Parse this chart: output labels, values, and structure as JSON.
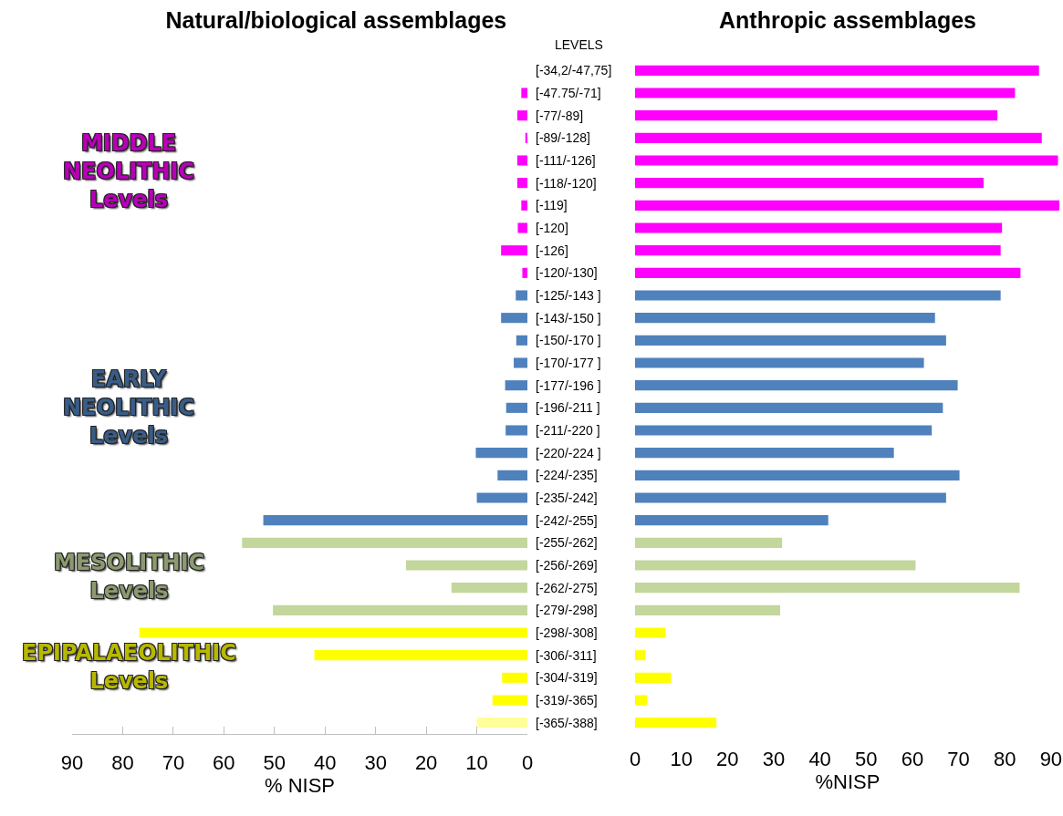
{
  "chart_data": [
    {
      "type": "bar",
      "orientation": "horizontal",
      "title": "Natural/biological assemblages",
      "xlabel": "% NISP",
      "ylabel": "LEVELS",
      "categories": [
        "[-34,2/-47,75]",
        "[-47.75/-71]",
        "[-77/-89]",
        "[-89/-128]",
        "[-111/-126]",
        "[-118/-120]",
        "[-119]",
        "[-120]",
        "[-126]",
        "[-120/-130]",
        "[-125/-143 ]",
        "[-143/-150 ]",
        "[-150/-170 ]",
        "[-170/-177 ]",
        "[-177/-196 ]",
        "[-196/-211 ]",
        "[-211/-220 ]",
        "[-220/-224 ]",
        "[-224/-235]",
        "[-235/-242]",
        "[-242/-255]",
        "[-255/-262]",
        "[-256/-269]",
        "[-262/-275]",
        "[-279/-298]",
        "[-298/-308]",
        "[-306/-311]",
        "[-304/-319]",
        "[-319/-365]",
        "[-365/-388]"
      ],
      "values": [
        0,
        1.2,
        2.0,
        0.4,
        2.0,
        2.0,
        1.2,
        1.9,
        5.2,
        1.0,
        2.3,
        5.2,
        2.2,
        2.7,
        4.4,
        4.2,
        4.3,
        10.2,
        5.9,
        10.0,
        52.2,
        56.4,
        24.0,
        15.0,
        50.3,
        76.7,
        42.1,
        5.0,
        6.9,
        10.0
      ],
      "colors": [
        "#ff00ff",
        "#ff00ff",
        "#ff00ff",
        "#ff00ff",
        "#ff00ff",
        "#ff00ff",
        "#ff00ff",
        "#ff00ff",
        "#ff00ff",
        "#ff00ff",
        "#4f81bd",
        "#4f81bd",
        "#4f81bd",
        "#4f81bd",
        "#4f81bd",
        "#4f81bd",
        "#4f81bd",
        "#4f81bd",
        "#4f81bd",
        "#4f81bd",
        "#4f81bd",
        "#c3d69b",
        "#c3d69b",
        "#c3d69b",
        "#c3d69b",
        "#ffff00",
        "#ffff00",
        "#ffff00",
        "#ffff00",
        "#ffff99"
      ],
      "xlim": [
        90,
        0
      ],
      "xticks": [
        90,
        80,
        70,
        60,
        50,
        40,
        30,
        20,
        10,
        0
      ],
      "tick_labels": "xy",
      "annotations": [
        "MIDDLE\nNEOLITHIC\nLevels",
        "EARLY\nNEOLITHIC\nLevels",
        "MESOLITHIC\nLevels",
        "EPIPALAEOLITHIC\nLevels"
      ]
    },
    {
      "type": "bar",
      "orientation": "horizontal",
      "title": "Anthropic assemblages",
      "xlabel": "%NISP",
      "categories": [
        "[-34,2/-47,75]",
        "[-47.75/-71]",
        "[-77/-89]",
        "[-89/-128]",
        "[-111/-126]",
        "[-118/-120]",
        "[-119]",
        "[-120]",
        "[-126]",
        "[-120/-130]",
        "[-125/-143 ]",
        "[-143/-150 ]",
        "[-150/-170 ]",
        "[-170/-177 ]",
        "[-177/-196 ]",
        "[-196/-211 ]",
        "[-211/-220 ]",
        "[-220/-224 ]",
        "[-224/-235]",
        "[-235/-242]",
        "[-242/-255]",
        "[-255/-262]",
        "[-256/-269]",
        "[-262/-275]",
        "[-279/-298]",
        "[-298/-308]",
        "[-306/-311]",
        "[-304/-319]",
        "[-319/-365]",
        "[-365/-388]"
      ],
      "values": [
        87.4,
        82.2,
        78.4,
        88.0,
        91.5,
        75.4,
        91.8,
        79.4,
        79.1,
        83.4,
        79.1,
        64.9,
        67.3,
        62.5,
        69.8,
        66.6,
        64.2,
        56.0,
        70.2,
        67.3,
        41.8,
        31.8,
        60.7,
        83.2,
        31.4,
        6.6,
        2.2,
        7.8,
        2.6,
        17.6
      ],
      "colors": [
        "#ff00ff",
        "#ff00ff",
        "#ff00ff",
        "#ff00ff",
        "#ff00ff",
        "#ff00ff",
        "#ff00ff",
        "#ff00ff",
        "#ff00ff",
        "#ff00ff",
        "#4f81bd",
        "#4f81bd",
        "#4f81bd",
        "#4f81bd",
        "#4f81bd",
        "#4f81bd",
        "#4f81bd",
        "#4f81bd",
        "#4f81bd",
        "#4f81bd",
        "#4f81bd",
        "#c3d69b",
        "#c3d69b",
        "#c3d69b",
        "#c3d69b",
        "#ffff00",
        "#ffff00",
        "#ffff00",
        "#ffff00",
        "#ffff00"
      ],
      "xlim": [
        0,
        92
      ],
      "xticks": [
        0,
        10,
        20,
        30,
        40,
        50,
        60,
        70,
        80,
        90
      ],
      "tick_labels": "x"
    }
  ]
}
